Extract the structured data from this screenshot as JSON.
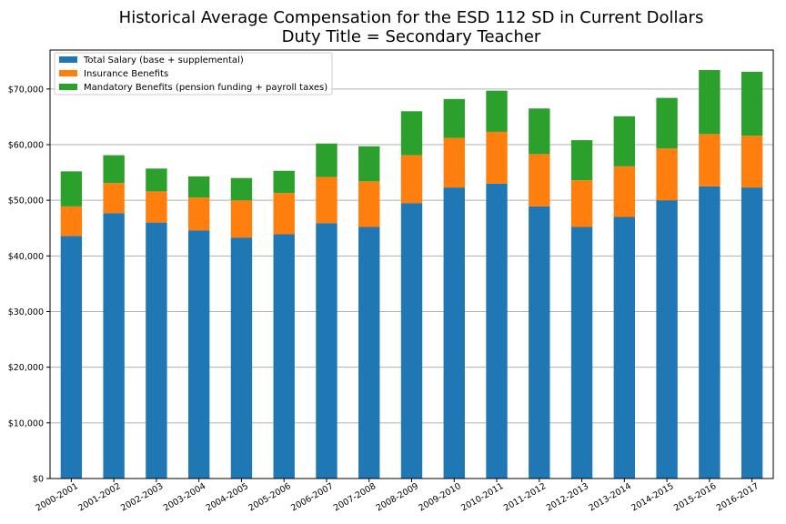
{
  "chart_data": {
    "type": "bar",
    "stacked": true,
    "title": "Historical Average Compensation for the ESD 112 SD in Current Dollars",
    "subtitle": "Duty Title = Secondary Teacher",
    "xlabel": "",
    "ylabel": "",
    "ylim": [
      0,
      77000
    ],
    "yticks": [
      0,
      10000,
      20000,
      30000,
      40000,
      50000,
      60000,
      70000
    ],
    "ytick_labels": [
      "$0",
      "$10,000",
      "$20,000",
      "$30,000",
      "$40,000",
      "$50,000",
      "$60,000",
      "$70,000"
    ],
    "grid": "horizontal",
    "legend_position": "top-left",
    "categories": [
      "2000-2001",
      "2001-2002",
      "2002-2003",
      "2003-2004",
      "2004-2005",
      "2005-2006",
      "2006-2007",
      "2007-2008",
      "2008-2009",
      "2009-2010",
      "2010-2011",
      "2011-2012",
      "2012-2013",
      "2013-2014",
      "2014-2015",
      "2015-2016",
      "2016-2017"
    ],
    "series": [
      {
        "name": "Total Salary (base + supplemental)",
        "color": "#1f77b4",
        "values": [
          43600,
          47700,
          46000,
          44600,
          43300,
          43900,
          45900,
          45200,
          49500,
          52300,
          53000,
          48900,
          45200,
          47000,
          50000,
          52500,
          52300
        ]
      },
      {
        "name": "Insurance Benefits",
        "color": "#ff7f0e",
        "values": [
          5300,
          5400,
          5600,
          5900,
          6700,
          7400,
          8300,
          8200,
          8600,
          8900,
          9300,
          9400,
          8400,
          9100,
          9300,
          9400,
          9300
        ]
      },
      {
        "name": "Mandatory Benefits (pension funding + payroll taxes)",
        "color": "#2ca02c",
        "values": [
          6300,
          5000,
          4100,
          3800,
          4000,
          4000,
          6000,
          6300,
          7900,
          7000,
          7400,
          8200,
          7200,
          9000,
          9100,
          11500,
          11500
        ]
      }
    ]
  }
}
